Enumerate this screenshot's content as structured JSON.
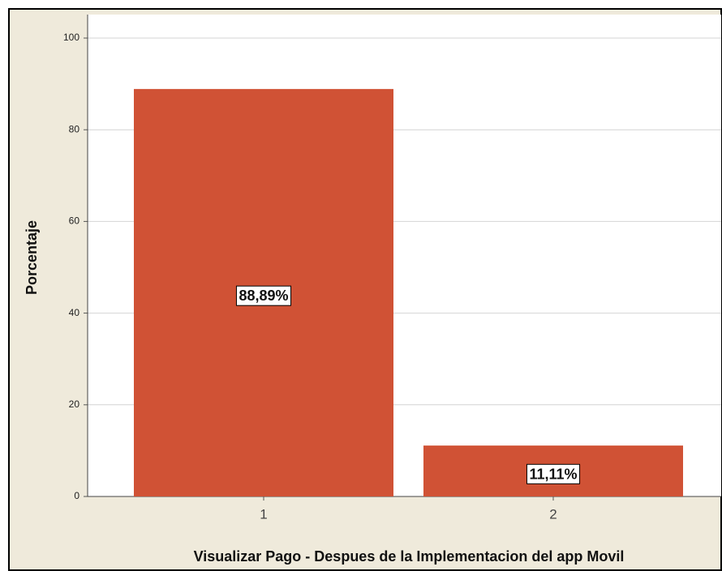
{
  "chart_data": {
    "type": "bar",
    "x_label": "Visualizar Pago - Despues de la Implementacion del app Movil",
    "y_label": "Porcentaje",
    "categories": [
      "1",
      "2"
    ],
    "values": [
      88.89,
      11.11
    ],
    "value_labels": [
      "88,89%",
      "11,11%"
    ],
    "color": "#d05235",
    "ylim": [
      0,
      100
    ],
    "yticks": [
      0,
      20,
      40,
      60,
      80,
      100
    ],
    "grid": true
  }
}
